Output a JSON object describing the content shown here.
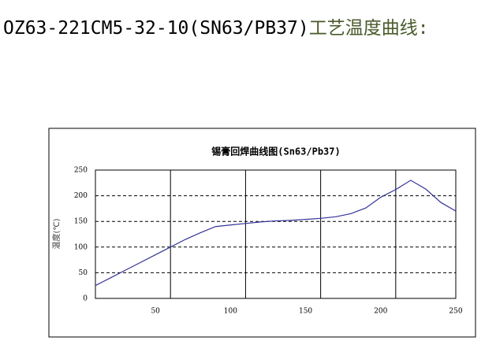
{
  "header": {
    "code": "OZ63-221CM5-32-10(SN63/PB37)",
    "title": "工艺温度曲线:"
  },
  "chart_data": {
    "type": "line",
    "title": "锡膏回焊曲线图(Sn63/Pb37)",
    "y_label": "温度(℃)",
    "x": [
      10,
      20,
      30,
      40,
      50,
      60,
      70,
      80,
      90,
      100,
      110,
      120,
      130,
      140,
      150,
      160,
      170,
      180,
      190,
      200,
      210,
      220,
      230,
      240,
      250
    ],
    "series": [
      {
        "color": "#333399",
        "values": [
          25,
          40,
          55,
          70,
          85,
          100,
          115,
          128,
          140,
          143,
          146,
          149,
          151,
          152,
          154,
          156,
          159,
          165,
          176,
          197,
          212,
          230,
          213,
          187,
          170
        ]
      }
    ],
    "xlim": [
      10,
      250
    ],
    "xticks": [
      50,
      100,
      150,
      200,
      250
    ],
    "xgrid": [
      60,
      110,
      160,
      210
    ],
    "ylim": [
      0,
      250
    ],
    "yticks": [
      0,
      50,
      100,
      150,
      200,
      250
    ],
    "grid": true
  }
}
